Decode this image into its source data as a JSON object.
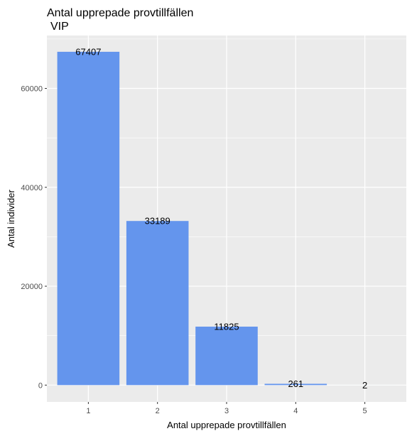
{
  "chart_data": {
    "type": "bar",
    "title": "Antal upprepade provtillfällen",
    "subtitle": "VIP",
    "xlabel": "Antal upprepade provtillfällen",
    "ylabel": "Antal individer",
    "categories": [
      "1",
      "2",
      "3",
      "4",
      "5"
    ],
    "values": [
      67407,
      33189,
      11825,
      261,
      2
    ],
    "data_labels": [
      "67407",
      "33189",
      "11825",
      "261",
      "2"
    ],
    "yticks": [
      0,
      20000,
      40000,
      60000
    ],
    "ytick_labels": [
      "0",
      "20000",
      "40000",
      "60000"
    ],
    "ylim": [
      -3400,
      70700
    ],
    "xlim": [
      0.4,
      5.6
    ],
    "grid": true,
    "legend": "none",
    "colors": {
      "bar": "#6495ED",
      "panel": "#EBEBEB",
      "grid_major": "#FFFFFF"
    }
  }
}
